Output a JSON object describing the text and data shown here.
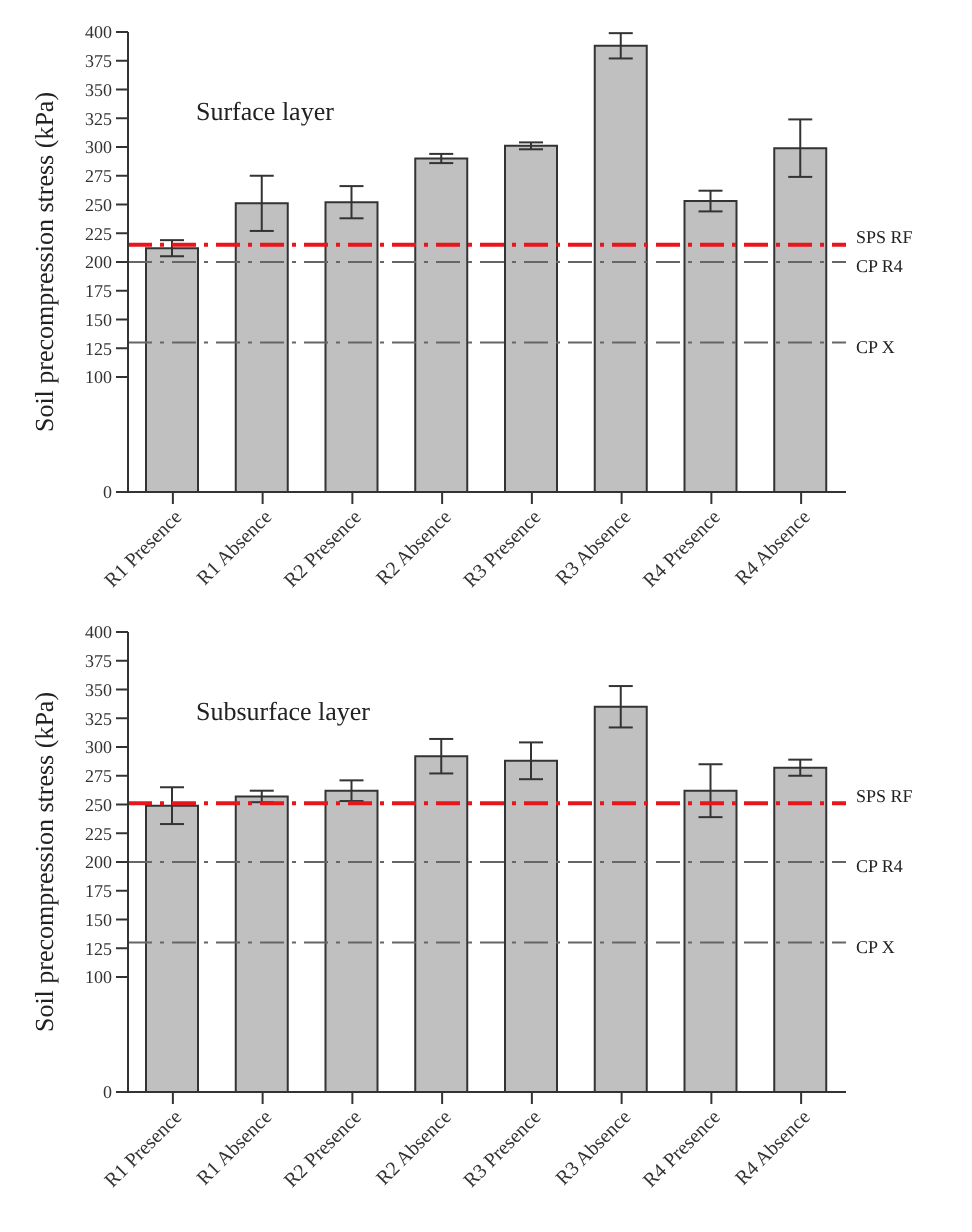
{
  "chart_data": [
    {
      "type": "bar",
      "title": "Surface layer",
      "ylabel": "Soil precompression stress (kPa)",
      "categories": [
        "R1 Presence",
        "R1 Absence",
        "R2 Presence",
        "R2 Absence",
        "R3 Presence",
        "R3 Absence",
        "R4 Presence",
        "R4 Absence"
      ],
      "values": [
        212,
        251,
        252,
        290,
        301,
        388,
        253,
        299
      ],
      "errors": [
        7,
        24,
        14,
        4,
        3,
        11,
        9,
        25
      ],
      "color": "#c0c0c0",
      "ylim": [
        0,
        400
      ],
      "yticks": [
        0,
        100,
        125,
        150,
        175,
        200,
        225,
        250,
        275,
        300,
        325,
        350,
        375,
        400
      ],
      "ref_lines": [
        {
          "axis": "y",
          "value": 215,
          "label": "SPS RF",
          "color": "#e8151b",
          "line_style": "dashed"
        },
        {
          "axis": "y",
          "value": 200,
          "label": "CP R4",
          "color": "#666666",
          "line_style": "dashed"
        },
        {
          "axis": "y",
          "value": 130,
          "label": "CP X",
          "color": "#666666",
          "line_style": "dashed"
        }
      ],
      "grid": false,
      "legend": false
    },
    {
      "type": "bar",
      "title": "Subsurface layer",
      "ylabel": "Soil precompression stress (kPa)",
      "categories": [
        "R1 Presence",
        "R1 Absence",
        "R2 Presence",
        "R2 Absence",
        "R3 Presence",
        "R3 Absence",
        "R4 Presence",
        "R4 Absence"
      ],
      "values": [
        249,
        257,
        262,
        292,
        288,
        335,
        262,
        282
      ],
      "errors": [
        16,
        5,
        9,
        15,
        16,
        18,
        23,
        7
      ],
      "color": "#c0c0c0",
      "ylim": [
        0,
        400
      ],
      "yticks": [
        0,
        100,
        125,
        150,
        175,
        200,
        225,
        250,
        275,
        300,
        325,
        350,
        375,
        400
      ],
      "ref_lines": [
        {
          "axis": "y",
          "value": 251,
          "label": "SPS RF",
          "color": "#e8151b",
          "line_style": "dashed"
        },
        {
          "axis": "y",
          "value": 200,
          "label": "CP R4",
          "color": "#666666",
          "line_style": "dashed"
        },
        {
          "axis": "y",
          "value": 130,
          "label": "CP X",
          "color": "#666666",
          "line_style": "dashed"
        }
      ],
      "grid": false,
      "legend": false
    }
  ]
}
